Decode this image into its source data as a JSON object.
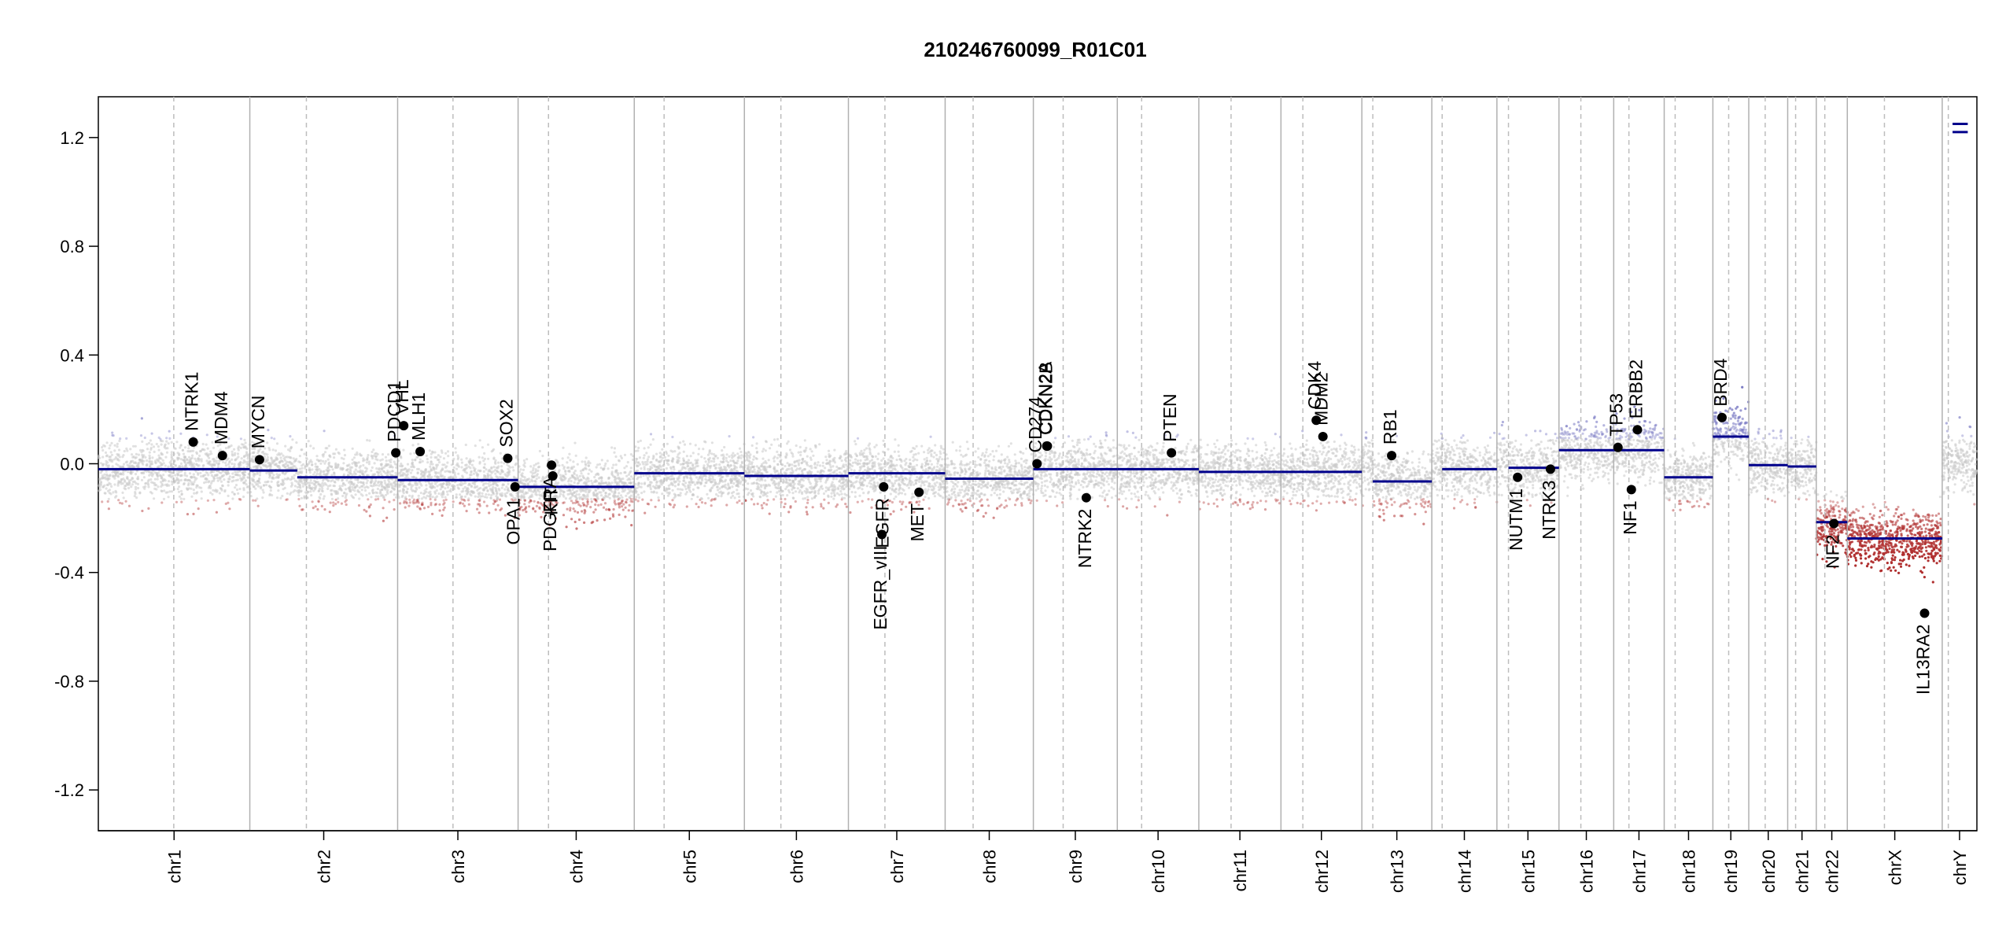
{
  "chart_data": {
    "type": "scatter",
    "title": "210246760099_R01C01",
    "xlabel": "",
    "ylabel": "",
    "ylim": [
      -1.35,
      1.35
    ],
    "yticks": [
      -1.2,
      -0.8,
      -0.4,
      0.0,
      0.4,
      0.8,
      1.2
    ],
    "ytick_labels": [
      "-1.2",
      "-0.8",
      "-0.4",
      "0.0",
      "0.4",
      "0.8",
      "1.2"
    ],
    "grid": false,
    "colors": {
      "positive_points": "#7b7bc4",
      "negative_points": "#b03030",
      "neutral_points": "#c8c8c8",
      "segment_line": "#00008b",
      "gene_point": "#000000",
      "chromosome_border": "#b0b0b0",
      "centromere_line": "#bdbdbd"
    },
    "chromosomes": [
      {
        "name": "chr1",
        "start": 0,
        "end": 249,
        "centromere": 124,
        "label": "chr1"
      },
      {
        "name": "chr2",
        "start": 249,
        "end": 492,
        "centromere": 342,
        "label": "chr2"
      },
      {
        "name": "chr3",
        "start": 492,
        "end": 690,
        "centromere": 583,
        "label": "chr3"
      },
      {
        "name": "chr4",
        "start": 690,
        "end": 881,
        "centromere": 740,
        "label": "chr4"
      },
      {
        "name": "chr5",
        "start": 881,
        "end": 1062,
        "centromere": 930,
        "label": "chr5"
      },
      {
        "name": "chr6",
        "start": 1062,
        "end": 1233,
        "centromere": 1122,
        "label": "chr6"
      },
      {
        "name": "chr7",
        "start": 1233,
        "end": 1392,
        "centromere": 1293,
        "label": "chr7"
      },
      {
        "name": "chr8",
        "start": 1392,
        "end": 1537,
        "centromere": 1438,
        "label": "chr8"
      },
      {
        "name": "chr9",
        "start": 1537,
        "end": 1675,
        "centromere": 1586,
        "label": "chr9"
      },
      {
        "name": "chr10",
        "start": 1675,
        "end": 1809,
        "centromere": 1715,
        "label": "chr10"
      },
      {
        "name": "chr11",
        "start": 1809,
        "end": 1944,
        "centromere": 1862,
        "label": "chr11"
      },
      {
        "name": "chr12",
        "start": 1944,
        "end": 2077,
        "centromere": 1980,
        "label": "chr12"
      },
      {
        "name": "chr13",
        "start": 2077,
        "end": 2192,
        "centromere": 2095,
        "label": "chr13"
      },
      {
        "name": "chr14",
        "start": 2192,
        "end": 2299,
        "centromere": 2209,
        "label": "chr14"
      },
      {
        "name": "chr15",
        "start": 2299,
        "end": 2401,
        "centromere": 2318,
        "label": "chr15"
      },
      {
        "name": "chr16",
        "start": 2401,
        "end": 2491,
        "centromere": 2437,
        "label": "chr16"
      },
      {
        "name": "chr17",
        "start": 2491,
        "end": 2574,
        "centromere": 2516,
        "label": "chr17"
      },
      {
        "name": "chr18",
        "start": 2574,
        "end": 2654,
        "centromere": 2592,
        "label": "chr18"
      },
      {
        "name": "chr19",
        "start": 2654,
        "end": 2713,
        "centromere": 2680,
        "label": "chr19"
      },
      {
        "name": "chr20",
        "start": 2713,
        "end": 2777,
        "centromere": 2740,
        "label": "chr20"
      },
      {
        "name": "chr21",
        "start": 2777,
        "end": 2824,
        "centromere": 2790,
        "label": "chr21"
      },
      {
        "name": "chr22",
        "start": 2824,
        "end": 2875,
        "centromere": 2838,
        "label": "chr22"
      },
      {
        "name": "chrX",
        "start": 2875,
        "end": 3031,
        "centromere": 2936,
        "label": "chrX"
      },
      {
        "name": "chrY",
        "start": 3031,
        "end": 3088,
        "centromere": 3041,
        "label": "chrY"
      }
    ],
    "segments": [
      {
        "chr": "chr1",
        "start": 0,
        "end": 249,
        "value": -0.02
      },
      {
        "chr": "chr2",
        "start": 249,
        "end": 327,
        "value": -0.025
      },
      {
        "chr": "chr2",
        "start": 327,
        "end": 492,
        "value": -0.05
      },
      {
        "chr": "chr3",
        "start": 492,
        "end": 690,
        "value": -0.06
      },
      {
        "chr": "chr4",
        "start": 690,
        "end": 881,
        "value": -0.085
      },
      {
        "chr": "chr5",
        "start": 881,
        "end": 1062,
        "value": -0.035
      },
      {
        "chr": "chr6",
        "start": 1062,
        "end": 1233,
        "value": -0.045
      },
      {
        "chr": "chr7",
        "start": 1233,
        "end": 1392,
        "value": -0.035
      },
      {
        "chr": "chr8",
        "start": 1392,
        "end": 1537,
        "value": -0.055
      },
      {
        "chr": "chr9",
        "start": 1537,
        "end": 1675,
        "value": -0.02
      },
      {
        "chr": "chr10",
        "start": 1675,
        "end": 1809,
        "value": -0.02
      },
      {
        "chr": "chr11",
        "start": 1809,
        "end": 1944,
        "value": -0.03
      },
      {
        "chr": "chr12",
        "start": 1944,
        "end": 2077,
        "value": -0.03
      },
      {
        "chr": "chr13",
        "start": 2095,
        "end": 2192,
        "value": -0.065
      },
      {
        "chr": "chr14",
        "start": 2209,
        "end": 2299,
        "value": -0.02
      },
      {
        "chr": "chr15",
        "start": 2318,
        "end": 2401,
        "value": -0.015
      },
      {
        "chr": "chr16",
        "start": 2401,
        "end": 2491,
        "value": 0.05
      },
      {
        "chr": "chr17",
        "start": 2491,
        "end": 2574,
        "value": 0.05
      },
      {
        "chr": "chr18",
        "start": 2574,
        "end": 2654,
        "value": -0.05
      },
      {
        "chr": "chr19",
        "start": 2654,
        "end": 2713,
        "value": 0.1
      },
      {
        "chr": "chr20",
        "start": 2713,
        "end": 2777,
        "value": -0.005
      },
      {
        "chr": "chr21",
        "start": 2777,
        "end": 2824,
        "value": -0.01
      },
      {
        "chr": "chr22",
        "start": 2824,
        "end": 2875,
        "value": -0.215
      },
      {
        "chr": "chrX",
        "start": 2875,
        "end": 3031,
        "value": -0.275
      },
      {
        "chr": "chrY",
        "start": 3048,
        "end": 3073,
        "value": 1.22
      },
      {
        "chr": "chrY",
        "start": 3048,
        "end": 3073,
        "value": 1.25
      }
    ],
    "genes": [
      {
        "name": "NTRK1",
        "pos": 156,
        "value": 0.08,
        "label_side": "above"
      },
      {
        "name": "MDM4",
        "pos": 204,
        "value": 0.03,
        "label_side": "above"
      },
      {
        "name": "MYCN",
        "pos": 265,
        "value": 0.015,
        "label_side": "above"
      },
      {
        "name": "PDCD1",
        "pos": 489,
        "value": 0.04,
        "label_side": "above"
      },
      {
        "name": "VHL",
        "pos": 502,
        "value": 0.14,
        "label_side": "above"
      },
      {
        "name": "MLH1",
        "pos": 529,
        "value": 0.045,
        "label_side": "above"
      },
      {
        "name": "SOX2",
        "pos": 673,
        "value": 0.02,
        "label_side": "above"
      },
      {
        "name": "OPA1",
        "pos": 685,
        "value": -0.085,
        "label_side": "below"
      },
      {
        "name": "PDGFRA",
        "pos": 745,
        "value": -0.005,
        "label_side": "below"
      },
      {
        "name": "KIT",
        "pos": 747,
        "value": -0.045,
        "label_side": "below"
      },
      {
        "name": "EGFR_vIII",
        "pos": 1288,
        "value": -0.26,
        "label_side": "below"
      },
      {
        "name": "EGFR",
        "pos": 1291,
        "value": -0.085,
        "label_side": "below"
      },
      {
        "name": "MET",
        "pos": 1349,
        "value": -0.105,
        "label_side": "below"
      },
      {
        "name": "CD274",
        "pos": 1543,
        "value": 0.0,
        "label_side": "above"
      },
      {
        "name": "CDKN2A",
        "pos": 1559,
        "value": 0.065,
        "label_side": "above"
      },
      {
        "name": "CDKN2B",
        "pos": 1560,
        "value": 0.065,
        "label_side": "above"
      },
      {
        "name": "NTRK2",
        "pos": 1624,
        "value": -0.125,
        "label_side": "below"
      },
      {
        "name": "PTEN",
        "pos": 1764,
        "value": 0.04,
        "label_side": "above"
      },
      {
        "name": "CDK4",
        "pos": 2002,
        "value": 0.16,
        "label_side": "above"
      },
      {
        "name": "MDM2",
        "pos": 2013,
        "value": 0.1,
        "label_side": "above"
      },
      {
        "name": "RB1",
        "pos": 2126,
        "value": 0.03,
        "label_side": "above"
      },
      {
        "name": "NUTM1",
        "pos": 2333,
        "value": -0.05,
        "label_side": "below"
      },
      {
        "name": "NTRK3",
        "pos": 2387,
        "value": -0.02,
        "label_side": "below"
      },
      {
        "name": "TP53",
        "pos": 2498,
        "value": 0.06,
        "label_side": "above"
      },
      {
        "name": "NF1",
        "pos": 2520,
        "value": -0.095,
        "label_side": "below"
      },
      {
        "name": "ERBB2",
        "pos": 2530,
        "value": 0.125,
        "label_side": "above"
      },
      {
        "name": "BRD4",
        "pos": 2669,
        "value": 0.17,
        "label_side": "above"
      },
      {
        "name": "NF2",
        "pos": 2853,
        "value": -0.22,
        "label_side": "below"
      },
      {
        "name": "IL13RA2",
        "pos": 3002,
        "value": -0.55,
        "label_side": "below"
      }
    ]
  }
}
